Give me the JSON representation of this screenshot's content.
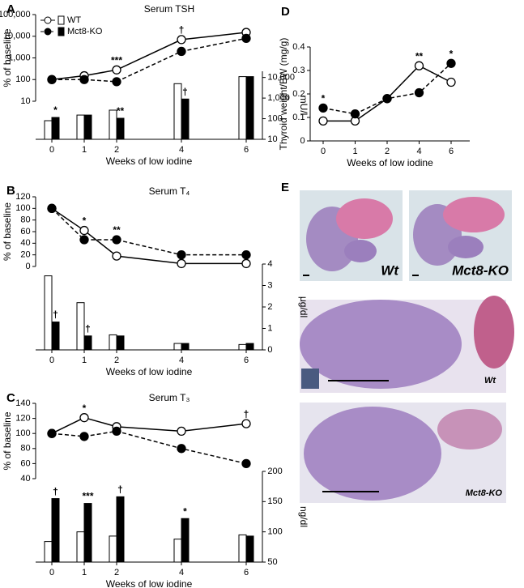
{
  "chart_data": [
    {
      "type": "line_bar",
      "panel": "A",
      "title": "Serum TSH",
      "log": true,
      "x": [
        0,
        1,
        2,
        4,
        6
      ],
      "xlim": [
        -0.5,
        6.5
      ],
      "xticks": [
        0,
        1,
        2,
        4,
        6
      ],
      "xlabel": "Weeks of low iodine",
      "ylabel": "% of baseline",
      "ylim": [
        10,
        100000
      ],
      "yticks": [
        10,
        100,
        {
          "value": 1000,
          "label": "1,000"
        },
        {
          "value": 10000,
          "label": "10,000"
        },
        {
          "value": 100000,
          "label": "100,000"
        }
      ],
      "y2label": "mU/l",
      "y2lim": [
        10,
        20000
      ],
      "y2ticks": [
        10,
        100,
        {
          "value": 1000,
          "label": "1,000"
        },
        {
          "value": 10000,
          "label": "10,000"
        }
      ],
      "series": [
        {
          "name": "WT",
          "color": "#000000",
          "fill": "#ffffff",
          "dashed": false,
          "values": [
            100,
            150,
            280,
            7000,
            15000
          ]
        },
        {
          "name": "Mct8-KO",
          "color": "#000000",
          "fill": "#000000",
          "dashed": true,
          "values": [
            100,
            100,
            80,
            2000,
            8000
          ]
        }
      ],
      "bar_series": [
        {
          "color": "#ffffff",
          "values": [
            80,
            150,
            260,
            5000,
            11000
          ]
        },
        {
          "color": "#000000",
          "values": [
            115,
            150,
            105,
            900,
            11000
          ]
        }
      ],
      "annotations": [
        {
          "text": "*",
          "x": 0,
          "on": "bar"
        },
        {
          "text": "***",
          "x": 2,
          "on": "line"
        },
        {
          "text": "**",
          "x": 2,
          "on": "bar"
        },
        {
          "text": "†",
          "x": 4,
          "on": "line"
        },
        {
          "text": "†",
          "x": 4,
          "on": "bar"
        }
      ]
    },
    {
      "type": "line_bar",
      "panel": "B",
      "title": "Serum T₄",
      "log": false,
      "x": [
        0,
        1,
        2,
        4,
        6
      ],
      "xlim": [
        -0.5,
        6.5
      ],
      "xticks": [
        0,
        1,
        2,
        4,
        6
      ],
      "xlabel": "Weeks of low iodine",
      "ylabel": "% of baseline",
      "ylim": [
        0,
        120
      ],
      "yticks": [
        0,
        20,
        40,
        60,
        80,
        100,
        120
      ],
      "y2label": "μg/dl",
      "y2lim": [
        0,
        4
      ],
      "y2ticks": [
        0,
        1,
        2,
        3,
        4
      ],
      "series": [
        {
          "color": "#000000",
          "fill": "#ffffff",
          "dashed": false,
          "values": [
            100,
            62,
            18,
            5,
            5
          ]
        },
        {
          "color": "#000000",
          "fill": "#000000",
          "dashed": true,
          "values": [
            100,
            46,
            46,
            20,
            20
          ]
        }
      ],
      "bar_series": [
        {
          "color": "#ffffff",
          "values": [
            3.45,
            2.2,
            0.7,
            0.3,
            0.25
          ]
        },
        {
          "color": "#000000",
          "values": [
            1.3,
            0.65,
            0.65,
            0.3,
            0.3
          ]
        }
      ],
      "annotations": [
        {
          "text": "*",
          "x": 1,
          "on": "line"
        },
        {
          "text": "**",
          "x": 2,
          "on": "line"
        },
        {
          "text": "†",
          "x": 0,
          "on": "bar"
        },
        {
          "text": "†",
          "x": 1,
          "on": "bar"
        }
      ]
    },
    {
      "type": "line_bar",
      "panel": "C",
      "title": "Serum T₃",
      "log": false,
      "x": [
        0,
        1,
        2,
        4,
        6
      ],
      "xlim": [
        -0.5,
        6.5
      ],
      "xticks": [
        0,
        1,
        2,
        4,
        6
      ],
      "xlabel": "Weeks of low iodine",
      "ylabel": "% of baseline",
      "ylim": [
        40,
        140
      ],
      "yticks": [
        40,
        60,
        80,
        100,
        120,
        140
      ],
      "y2label": "ng/dl",
      "y2lim": [
        50,
        200
      ],
      "y2ticks": [
        50,
        100,
        150,
        200
      ],
      "series": [
        {
          "color": "#000000",
          "fill": "#ffffff",
          "dashed": false,
          "values": [
            100,
            121,
            109,
            103,
            113
          ]
        },
        {
          "color": "#000000",
          "fill": "#000000",
          "dashed": true,
          "values": [
            100,
            96,
            103,
            80,
            60
          ]
        }
      ],
      "bar_series": [
        {
          "color": "#ffffff",
          "values": [
            84,
            100,
            93,
            88,
            95
          ]
        },
        {
          "color": "#000000",
          "values": [
            155,
            147,
            158,
            122,
            93
          ]
        }
      ],
      "annotations": [
        {
          "text": "*",
          "x": 1,
          "on": "line"
        },
        {
          "text": "†",
          "x": 6,
          "on": "line"
        },
        {
          "text": "†",
          "x": 0,
          "on": "bar"
        },
        {
          "text": "***",
          "x": 1,
          "on": "bar"
        },
        {
          "text": "†",
          "x": 2,
          "on": "bar"
        },
        {
          "text": "*",
          "x": 4,
          "on": "bar"
        }
      ]
    },
    {
      "type": "line",
      "panel": "D",
      "categories": [
        "0",
        "1",
        "2",
        "4",
        "6"
      ],
      "xlabel": "Weeks of low iodine",
      "ylabel": "Thyroid weight/BW (mg/g)",
      "ylim": [
        0,
        0.4
      ],
      "yticks": [
        0,
        0.1,
        0.2,
        0.3,
        0.4
      ],
      "series": [
        {
          "color": "#000000",
          "fill": "#ffffff",
          "dashed": false,
          "values": [
            0.085,
            0.085,
            0.18,
            0.32,
            0.25
          ]
        },
        {
          "color": "#000000",
          "fill": "#000000",
          "dashed": true,
          "values": [
            0.14,
            0.115,
            0.18,
            0.205,
            0.33
          ]
        }
      ],
      "annotations": [
        {
          "text": "*",
          "x": "0"
        },
        {
          "text": "**",
          "x": "4"
        },
        {
          "text": "*",
          "x": "6"
        }
      ]
    }
  ],
  "images": {
    "panel": "E",
    "captions": [
      "Wt",
      "Mct8-KO",
      "Wt",
      "Mct8-KO"
    ]
  }
}
